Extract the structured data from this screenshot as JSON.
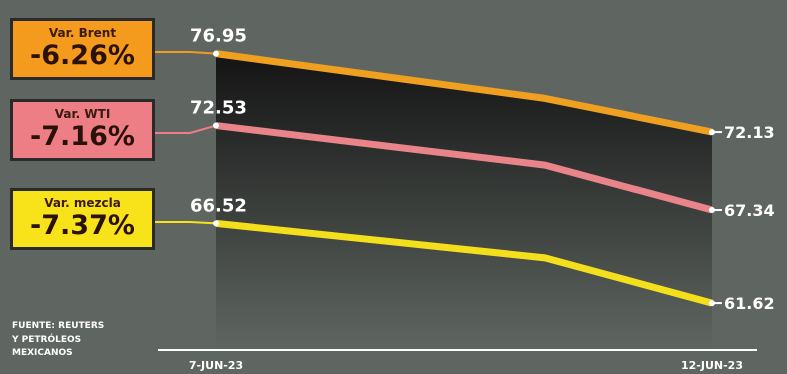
{
  "chart_data": {
    "type": "line",
    "x": [
      "7-JUN-23",
      "",
      "12-JUN-23"
    ],
    "xlabel": "",
    "ylabel": "",
    "ylim": [
      58,
      80
    ],
    "series": [
      {
        "name": "Var. Brent",
        "change": "-6.26%",
        "values": [
          76.95,
          74.2,
          72.13
        ],
        "labels": [
          "76.95",
          "",
          "72.13"
        ],
        "color": "#f0a020",
        "box_color": "#f49a1c"
      },
      {
        "name": "Var. WTI",
        "change": "-7.16%",
        "values": [
          72.53,
          70.1,
          67.34
        ],
        "labels": [
          "72.53",
          "",
          "67.34"
        ],
        "color": "#e8848a",
        "box_color": "#ee7e86"
      },
      {
        "name": "Var. mezcla",
        "change": "-7.37%",
        "values": [
          66.52,
          64.4,
          61.62
        ],
        "labels": [
          "66.52",
          "",
          "61.62"
        ],
        "color": "#f3df1c",
        "box_color": "#f8e31a"
      }
    ],
    "tick_labels": [
      "7-JUN-23",
      "12-JUN-23"
    ]
  },
  "source": {
    "lines": [
      "FUENTE: REUTERS",
      "Y PETRÓLEOS",
      "MEXICANOS"
    ]
  }
}
